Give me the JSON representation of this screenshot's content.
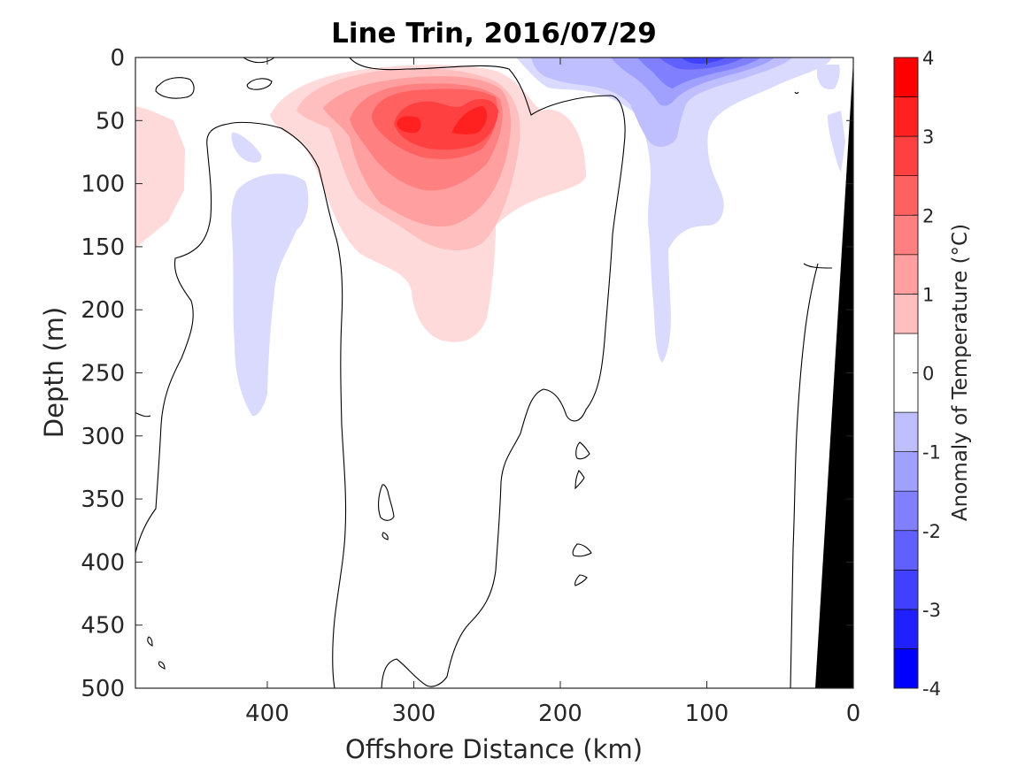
{
  "chart_data": {
    "type": "heatmap",
    "subtype": "filled-contour depth section",
    "title": "Line Trin, 2016/07/29",
    "xlabel": "Offshore Distance (km)",
    "ylabel": "Depth (m)",
    "xlim": [
      490,
      0
    ],
    "x_reversed": true,
    "ylim": [
      0,
      500
    ],
    "y_reversed": true,
    "x_ticks": [
      400,
      300,
      200,
      100,
      0
    ],
    "y_ticks": [
      0,
      50,
      100,
      150,
      200,
      250,
      300,
      350,
      400,
      450,
      500
    ],
    "colorbar": {
      "label": "Anomaly of Temperature (°C)",
      "ticks": [
        4,
        3,
        2,
        1,
        0,
        -1,
        -2,
        -3,
        -4
      ],
      "levels": [
        -4,
        -3.5,
        -3,
        -2.5,
        -2,
        -1.5,
        -1,
        -0.5,
        0.5,
        1,
        1.5,
        2,
        2.5,
        3,
        3.5,
        4
      ],
      "colors": [
        "#0000ff",
        "#2020ff",
        "#4040ff",
        "#6060ff",
        "#8080ff",
        "#a0a0ff",
        "#bfbfff",
        "#dadaff",
        "#ffffff",
        "#ffdada",
        "#ffbfbf",
        "#ff9f9f",
        "#ff8080",
        "#ff6060",
        "#ff4040",
        "#ff2020",
        "#ff0000"
      ]
    },
    "features": [
      {
        "name": "warm core",
        "x_range_km": [
          380,
          200
        ],
        "depth_range_m": [
          20,
          230
        ],
        "max_anomaly_c": 3.0,
        "center_x_km": 290,
        "center_depth_m": 60
      },
      {
        "name": "warm patch offshore",
        "x_range_km": [
          490,
          460
        ],
        "depth_range_m": [
          40,
          150
        ],
        "anomaly_c": 0.5
      },
      {
        "name": "cold surface band nearshore",
        "x_range_km": [
          230,
          40
        ],
        "depth_range_m": [
          0,
          250
        ],
        "min_anomaly_c": -3.0,
        "center_x_km": 100,
        "center_depth_m": 5
      },
      {
        "name": "cold column",
        "x_range_km": [
          430,
          380
        ],
        "depth_range_m": [
          60,
          285
        ],
        "anomaly_c": -0.5
      }
    ],
    "zero_contour": true,
    "bathymetry_mask": "black wedge from 0 km at the surface widening to about 25 km at 500 m depth"
  }
}
